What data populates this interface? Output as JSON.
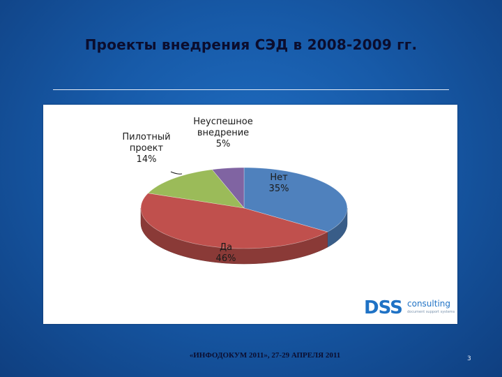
{
  "slide": {
    "title": "Проекты внедрения СЭД в 2008-2009 гг.",
    "footer": "«ИНФОДОКУМ 2011», 27-29 АПРЕЛЯ 2011",
    "page_number": "3"
  },
  "logo": {
    "dss": "DSS",
    "consulting": "consulting",
    "tagline": "document support systems"
  },
  "chart_data": {
    "type": "pie",
    "title": "",
    "categories": [
      "Нет",
      "Да",
      "Пилотный проект",
      "Неуспешное внедрение"
    ],
    "values": [
      35,
      46,
      14,
      5
    ],
    "units": "%",
    "labels": [
      {
        "lines": [
          "Нет",
          "35%"
        ]
      },
      {
        "lines": [
          "Да",
          "46%"
        ]
      },
      {
        "lines": [
          "Пилотный",
          "проект",
          "14%"
        ]
      },
      {
        "lines": [
          "Неуспешное",
          "внедрение",
          "5%"
        ]
      }
    ],
    "colors": [
      "#4f81bd",
      "#c0504d",
      "#9bbb59",
      "#8064a2"
    ],
    "style": "3d"
  }
}
